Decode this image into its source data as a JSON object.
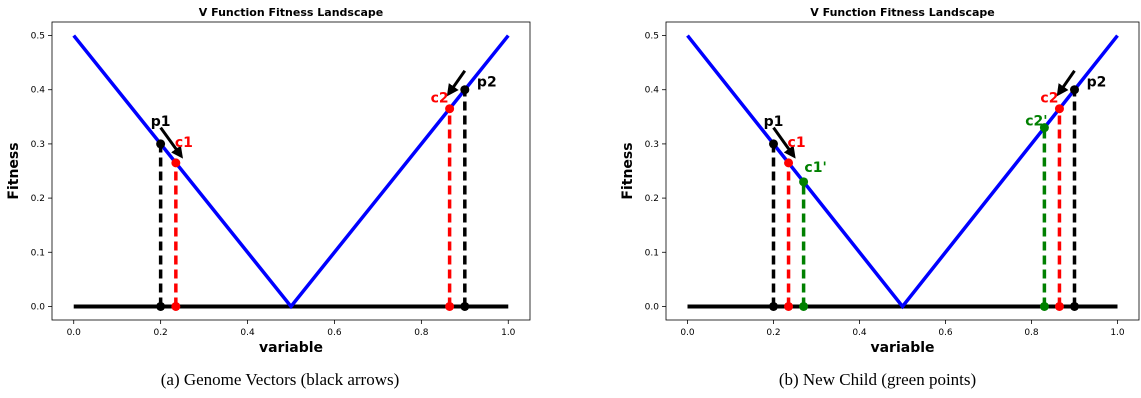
{
  "chart_data": [
    {
      "type": "line",
      "panel": "a",
      "title": "V Function Fitness Landscape",
      "xlabel": "variable",
      "ylabel": "Fitness",
      "xlim": [
        0.0,
        1.0
      ],
      "ylim": [
        0.0,
        0.5
      ],
      "xticks": [
        "0.0",
        "0.2",
        "0.4",
        "0.6",
        "0.8",
        "1.0"
      ],
      "yticks": [
        "0.0",
        "0.1",
        "0.2",
        "0.3",
        "0.4",
        "0.5"
      ],
      "series": [
        {
          "values_x": [
            0.0,
            0.5,
            1.0
          ],
          "values_y": [
            0.5,
            0.0,
            0.5
          ],
          "color": "#0000ff"
        }
      ],
      "points": [
        {
          "label": "p1",
          "x": 0.2,
          "y": 0.3,
          "color": "#000000"
        },
        {
          "label": "c1",
          "x": 0.235,
          "y": 0.265,
          "color": "#ff0000"
        },
        {
          "label": "c2",
          "x": 0.865,
          "y": 0.365,
          "color": "#ff0000"
        },
        {
          "label": "p2",
          "x": 0.9,
          "y": 0.4,
          "color": "#000000"
        }
      ],
      "arrows": [
        {
          "from": [
            0.2,
            0.33
          ],
          "to": [
            0.245,
            0.28
          ],
          "color": "#000000"
        },
        {
          "from": [
            0.9,
            0.435
          ],
          "to": [
            0.865,
            0.395
          ],
          "color": "#000000"
        }
      ],
      "caption": "(a) Genome Vectors (black arrows)"
    },
    {
      "type": "line",
      "panel": "b",
      "title": "V Function Fitness Landscape",
      "xlabel": "variable",
      "ylabel": "Fitness",
      "xlim": [
        0.0,
        1.0
      ],
      "ylim": [
        0.0,
        0.5
      ],
      "xticks": [
        "0.0",
        "0.2",
        "0.4",
        "0.6",
        "0.8",
        "1.0"
      ],
      "yticks": [
        "0.0",
        "0.1",
        "0.2",
        "0.3",
        "0.4",
        "0.5"
      ],
      "series": [
        {
          "values_x": [
            0.0,
            0.5,
            1.0
          ],
          "values_y": [
            0.5,
            0.0,
            0.5
          ],
          "color": "#0000ff"
        }
      ],
      "points": [
        {
          "label": "p1",
          "x": 0.2,
          "y": 0.3,
          "color": "#000000"
        },
        {
          "label": "c1",
          "x": 0.235,
          "y": 0.265,
          "color": "#ff0000"
        },
        {
          "label": "c1'",
          "x": 0.27,
          "y": 0.23,
          "color": "#008000"
        },
        {
          "label": "c2'",
          "x": 0.83,
          "y": 0.33,
          "color": "#008000"
        },
        {
          "label": "c2",
          "x": 0.865,
          "y": 0.365,
          "color": "#ff0000"
        },
        {
          "label": "p2",
          "x": 0.9,
          "y": 0.4,
          "color": "#000000"
        }
      ],
      "arrows": [
        {
          "from": [
            0.2,
            0.33
          ],
          "to": [
            0.245,
            0.28
          ],
          "color": "#000000"
        },
        {
          "from": [
            0.9,
            0.435
          ],
          "to": [
            0.865,
            0.395
          ],
          "color": "#000000"
        }
      ],
      "caption": "(b) New Child (green points)"
    }
  ]
}
